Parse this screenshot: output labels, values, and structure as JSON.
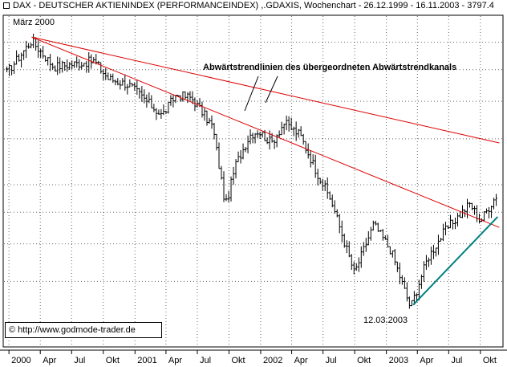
{
  "header": {
    "title": "DAX - DEUTSCHER AKTIENINDEX (PERFORMANCEINDEX) ,.GDAXIS, Wochenchart - 26.12.1999 - 16.11.2003 - 3797.4"
  },
  "annotations": {
    "high": "März 2000",
    "trend": "Abwärtstrendlinien des übergeordneten Abwärtstrendkanals",
    "low": "12.03.2003"
  },
  "copyright": "© http://www.godmode-trader.de",
  "colors": {
    "candle": "#000000",
    "trendline": "#dd0000",
    "uptrend": "#008080",
    "grid": "#000000"
  },
  "chart_data": {
    "type": "candlestick",
    "x_tick_labels": [
      "2000",
      "Apr",
      "Jul",
      "Okt",
      "2001",
      "Apr",
      "Jul",
      "Okt",
      "2002",
      "Apr",
      "Jul",
      "Okt",
      "2003",
      "Apr",
      "Jul",
      "Okt"
    ],
    "y_scale": "log",
    "y_axis_labels_shown": false,
    "grid": "dotted",
    "series": [
      {
        "style": "weekly-bars",
        "anchors": [
          {
            "date": "1999-12-26",
            "close": 6900
          },
          {
            "date": "2000-03-07",
            "close": 8064
          },
          {
            "date": "2000-05-10",
            "close": 7100
          },
          {
            "date": "2000-07-10",
            "close": 7200
          },
          {
            "date": "2000-09-05",
            "close": 7300
          },
          {
            "date": "2000-10-15",
            "close": 6700
          },
          {
            "date": "2000-12-15",
            "close": 6500
          },
          {
            "date": "2001-03-20",
            "close": 5600
          },
          {
            "date": "2001-05-01",
            "close": 6200
          },
          {
            "date": "2001-06-15",
            "close": 6100
          },
          {
            "date": "2001-08-15",
            "close": 5300
          },
          {
            "date": "2001-09-21",
            "close": 3600
          },
          {
            "date": "2001-10-20",
            "close": 4400
          },
          {
            "date": "2001-12-01",
            "close": 5100
          },
          {
            "date": "2001-12-25",
            "close": 5200
          },
          {
            "date": "2002-02-01",
            "close": 4900
          },
          {
            "date": "2002-03-10",
            "close": 5400
          },
          {
            "date": "2002-04-25",
            "close": 5100
          },
          {
            "date": "2002-06-10",
            "close": 4300
          },
          {
            "date": "2002-07-25",
            "close": 3700
          },
          {
            "date": "2002-09-30",
            "close": 2600
          },
          {
            "date": "2002-11-25",
            "close": 3300
          },
          {
            "date": "2003-01-15",
            "close": 2900
          },
          {
            "date": "2003-03-12",
            "close": 2200
          },
          {
            "date": "2003-05-01",
            "close": 2800
          },
          {
            "date": "2003-06-20",
            "close": 3200
          },
          {
            "date": "2003-08-01",
            "close": 3450
          },
          {
            "date": "2003-09-01",
            "close": 3650
          },
          {
            "date": "2003-10-01",
            "close": 3350
          },
          {
            "date": "2003-11-16",
            "close": 3797.4
          }
        ]
      }
    ],
    "trendlines": [
      {
        "color": "trendline",
        "from": {
          "date": "2000-03-07",
          "value": 8200
        },
        "to": {
          "date": "2003-11-25",
          "value": 4900
        }
      },
      {
        "color": "trendline",
        "from": {
          "date": "2000-03-07",
          "value": 8200
        },
        "to": {
          "date": "2003-11-25",
          "value": 3250
        }
      },
      {
        "color": "uptrend",
        "from": {
          "date": "2003-03-20",
          "value": 2230
        },
        "to": {
          "date": "2003-11-20",
          "value": 3420
        }
      }
    ]
  }
}
